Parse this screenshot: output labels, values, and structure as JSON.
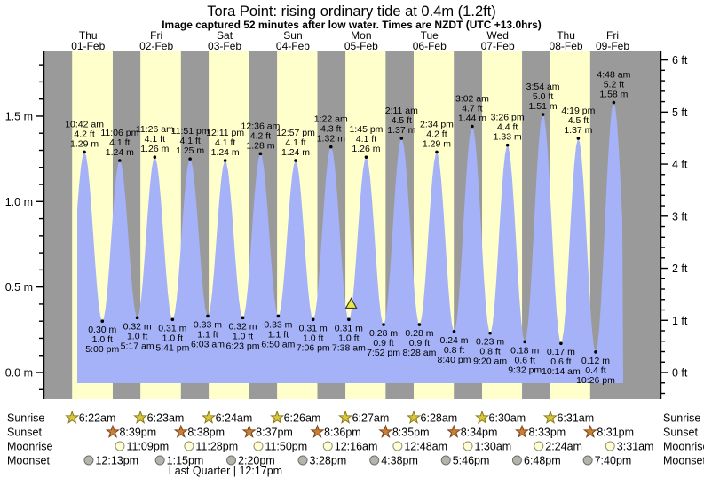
{
  "title": "Tora Point: rising  ordinary tide at 0.4m (1.2ft)",
  "subtitle": "Image captured 52 minutes after low water. Times are NZDT (UTC +13.0hrs)",
  "days": [
    {
      "name": "Thu",
      "date": "01-Feb"
    },
    {
      "name": "Fri",
      "date": "02-Feb"
    },
    {
      "name": "Sat",
      "date": "03-Feb"
    },
    {
      "name": "Sun",
      "date": "04-Feb"
    },
    {
      "name": "Mon",
      "date": "05-Feb"
    },
    {
      "name": "Tue",
      "date": "06-Feb"
    },
    {
      "name": "Wed",
      "date": "07-Feb"
    },
    {
      "name": "Thu",
      "date": "08-Feb"
    },
    {
      "name": "Fri",
      "date": "09-Feb"
    }
  ],
  "y_axis_left": {
    "unit": "m",
    "major_labels": [
      "0.0 m",
      "0.5 m",
      "1.0 m",
      "1.5 m"
    ]
  },
  "y_axis_right": {
    "unit": "ft",
    "major_labels": [
      "0 ft",
      "1 ft",
      "2 ft",
      "3 ft",
      "4 ft",
      "5 ft",
      "6 ft"
    ]
  },
  "chart_data": {
    "type": "area",
    "title": "Tora Point: rising ordinary tide at 0.4m (1.2ft)",
    "ylabel_left": "metres",
    "ylabel_right": "feet",
    "ylim_m": [
      -0.16,
      1.88
    ],
    "tides": [
      {
        "day": 0,
        "time": "10:42 am",
        "type": "high",
        "ft": 4.2,
        "m": 1.29
      },
      {
        "day": 0,
        "time": "5:00 pm",
        "type": "low",
        "ft": 1.0,
        "m": 0.3
      },
      {
        "day": 0,
        "time": "11:06 pm",
        "type": "high",
        "ft": 4.1,
        "m": 1.24
      },
      {
        "day": 1,
        "time": "5:17 am",
        "type": "low",
        "ft": 1.0,
        "m": 0.32
      },
      {
        "day": 1,
        "time": "11:26 am",
        "type": "high",
        "ft": 4.1,
        "m": 1.26
      },
      {
        "day": 1,
        "time": "5:41 pm",
        "type": "low",
        "ft": 1.0,
        "m": 0.31
      },
      {
        "day": 1,
        "time": "11:51 pm",
        "type": "high",
        "ft": 4.1,
        "m": 1.25
      },
      {
        "day": 2,
        "time": "6:03 am",
        "type": "low",
        "ft": 1.1,
        "m": 0.33
      },
      {
        "day": 2,
        "time": "12:11 pm",
        "type": "high",
        "ft": 4.1,
        "m": 1.24
      },
      {
        "day": 2,
        "time": "6:23 pm",
        "type": "low",
        "ft": 1.0,
        "m": 0.32
      },
      {
        "day": 3,
        "time": "12:36 am",
        "type": "high",
        "ft": 4.2,
        "m": 1.28
      },
      {
        "day": 3,
        "time": "6:50 am",
        "type": "low",
        "ft": 1.1,
        "m": 0.33
      },
      {
        "day": 3,
        "time": "12:57 pm",
        "type": "high",
        "ft": 4.1,
        "m": 1.24
      },
      {
        "day": 3,
        "time": "7:06 pm",
        "type": "low",
        "ft": 1.0,
        "m": 0.31
      },
      {
        "day": 4,
        "time": "1:22 am",
        "type": "high",
        "ft": 4.3,
        "m": 1.32
      },
      {
        "day": 4,
        "time": "7:38 am",
        "type": "low",
        "ft": 1.0,
        "m": 0.31
      },
      {
        "day": 4,
        "time": "1:45 pm",
        "type": "high",
        "ft": 4.1,
        "m": 1.26
      },
      {
        "day": 4,
        "time": "7:52 pm",
        "type": "low",
        "ft": 0.9,
        "m": 0.28
      },
      {
        "day": 5,
        "time": "2:11 am",
        "type": "high",
        "ft": 4.5,
        "m": 1.37
      },
      {
        "day": 5,
        "time": "8:28 am",
        "type": "low",
        "ft": 0.9,
        "m": 0.28
      },
      {
        "day": 5,
        "time": "2:34 pm",
        "type": "high",
        "ft": 4.2,
        "m": 1.29
      },
      {
        "day": 5,
        "time": "8:40 pm",
        "type": "low",
        "ft": 0.8,
        "m": 0.24
      },
      {
        "day": 6,
        "time": "3:02 am",
        "type": "high",
        "ft": 4.7,
        "m": 1.44
      },
      {
        "day": 6,
        "time": "9:20 am",
        "type": "low",
        "ft": 0.8,
        "m": 0.23
      },
      {
        "day": 6,
        "time": "3:26 pm",
        "type": "high",
        "ft": 4.4,
        "m": 1.33
      },
      {
        "day": 6,
        "time": "9:32 pm",
        "type": "low",
        "ft": 0.6,
        "m": 0.18
      },
      {
        "day": 7,
        "time": "3:54 am",
        "type": "high",
        "ft": 5.0,
        "m": 1.51
      },
      {
        "day": 7,
        "time": "10:14 am",
        "type": "low",
        "ft": 0.6,
        "m": 0.17
      },
      {
        "day": 7,
        "time": "4:19 pm",
        "type": "high",
        "ft": 4.5,
        "m": 1.37
      },
      {
        "day": 7,
        "time": "10:26 pm",
        "type": "low",
        "ft": 0.4,
        "m": 0.12
      },
      {
        "day": 8,
        "time": "4:48 am",
        "type": "high",
        "ft": 5.2,
        "m": 1.58
      }
    ],
    "current_marker": {
      "day": 4,
      "time": "8:30 am",
      "m": 0.4
    }
  },
  "astro": {
    "rows": [
      {
        "id": "sunrise",
        "label": "Sunrise",
        "icon": "sunrise-star-icon",
        "events": [
          {
            "day": 0,
            "time": "6:22am"
          },
          {
            "day": 1,
            "time": "6:23am"
          },
          {
            "day": 2,
            "time": "6:24am"
          },
          {
            "day": 3,
            "time": "6:26am"
          },
          {
            "day": 4,
            "time": "6:27am"
          },
          {
            "day": 5,
            "time": "6:28am"
          },
          {
            "day": 6,
            "time": "6:30am"
          },
          {
            "day": 7,
            "time": "6:31am"
          }
        ]
      },
      {
        "id": "sunset",
        "label": "Sunset",
        "icon": "sunset-star-icon",
        "events": [
          {
            "day": 0,
            "time": "8:39pm"
          },
          {
            "day": 1,
            "time": "8:38pm"
          },
          {
            "day": 2,
            "time": "8:37pm"
          },
          {
            "day": 3,
            "time": "8:36pm"
          },
          {
            "day": 4,
            "time": "8:35pm"
          },
          {
            "day": 5,
            "time": "8:34pm"
          },
          {
            "day": 6,
            "time": "8:33pm"
          },
          {
            "day": 7,
            "time": "8:31pm"
          }
        ]
      },
      {
        "id": "moonrise",
        "label": "Moonrise",
        "icon": "moonrise-circle-icon",
        "events": [
          {
            "day": 0,
            "time": "11:09pm"
          },
          {
            "day": 1,
            "time": "11:28pm"
          },
          {
            "day": 2,
            "time": "11:50pm"
          },
          {
            "day": 4,
            "time": "12:16am"
          },
          {
            "day": 5,
            "time": "12:48am"
          },
          {
            "day": 6,
            "time": "1:30am"
          },
          {
            "day": 7,
            "time": "2:24am"
          },
          {
            "day": 8,
            "time": "3:31am"
          }
        ]
      },
      {
        "id": "moonset",
        "label": "Moonset",
        "icon": "moonset-circle-icon",
        "events": [
          {
            "day": 0,
            "time": "12:13pm"
          },
          {
            "day": 1,
            "time": "1:15pm"
          },
          {
            "day": 2,
            "time": "2:20pm"
          },
          {
            "day": 3,
            "time": "3:28pm"
          },
          {
            "day": 4,
            "time": "4:38pm"
          },
          {
            "day": 5,
            "time": "5:46pm"
          },
          {
            "day": 6,
            "time": "6:48pm"
          },
          {
            "day": 7,
            "time": "7:40pm"
          }
        ]
      }
    ],
    "moon_phase": {
      "text": "Last Quarter | 12:17pm",
      "day": 2,
      "time": "12:17pm"
    }
  },
  "colors": {
    "night_band": "#9a9a9a",
    "day_band": "#ffffcc",
    "tide_fill": "#a5b2f7",
    "day_label": "#ee2e24",
    "axis": "#000000",
    "sunrise_star": "#d9c73d",
    "sunrise_star_outline": "#8a7a1a",
    "sunset_star": "#c97f35",
    "sunset_star_outline": "#79451c",
    "moonrise_circle": "#ffffd6",
    "moonrise_outline": "#8f8f70",
    "moonset_circle": "#b4b4ac",
    "moonset_outline": "#6f6f6f",
    "marker_fill": "#ece83e",
    "marker_outline": "#3c3c3c"
  }
}
